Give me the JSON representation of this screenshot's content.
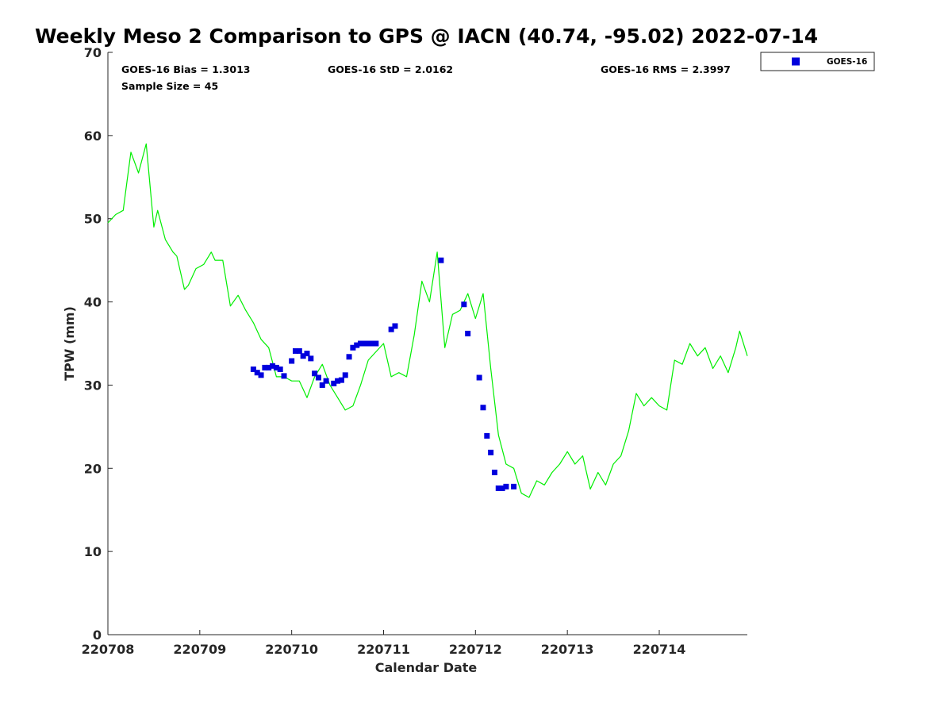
{
  "chart_data": {
    "type": "line",
    "title": "Weekly Meso 2 Comparison to GPS @ IACN (40.74, -95.02) 2022-07-14",
    "xlabel": "Calendar Date",
    "ylabel": "TPW (mm)",
    "ylim": [
      0,
      70
    ],
    "yticks": [
      "0",
      "10",
      "20",
      "30",
      "40",
      "50",
      "60",
      "70"
    ],
    "xlim": [
      "2022-07-08",
      "2022-07-14 23:00"
    ],
    "xticks": [
      "220708",
      "220709",
      "220710",
      "220711",
      "220712",
      "220713",
      "220714"
    ],
    "grid": false,
    "legend_position": "top-right",
    "stats": {
      "bias": "GOES-16 Bias = 1.3013",
      "std": "GOES-16 StD = 2.0162",
      "rms": "GOES-16 RMS = 2.3997",
      "sample": "Sample Size = 45"
    },
    "series": [
      {
        "color": "#00ee00",
        "x": [
          "2022-07-08 00:00",
          "2022-07-08 02:00",
          "2022-07-08 04:00",
          "2022-07-08 05:00",
          "2022-07-08 06:00",
          "2022-07-08 08:00",
          "2022-07-08 10:00",
          "2022-07-08 12:00",
          "2022-07-08 13:00",
          "2022-07-08 15:00",
          "2022-07-08 17:00",
          "2022-07-08 18:00",
          "2022-07-08 20:00",
          "2022-07-08 21:00",
          "2022-07-08 23:00",
          "2022-07-09 01:00",
          "2022-07-09 03:00",
          "2022-07-09 04:00",
          "2022-07-09 06:00",
          "2022-07-09 08:00",
          "2022-07-09 10:00",
          "2022-07-09 12:00",
          "2022-07-09 14:00",
          "2022-07-09 16:00",
          "2022-07-09 18:00",
          "2022-07-09 20:00",
          "2022-07-09 22:00",
          "2022-07-10 00:00",
          "2022-07-10 02:00",
          "2022-07-10 04:00",
          "2022-07-10 06:00",
          "2022-07-10 08:00",
          "2022-07-10 10:00",
          "2022-07-10 12:00",
          "2022-07-10 14:00",
          "2022-07-10 16:00",
          "2022-07-10 18:00",
          "2022-07-10 20:00",
          "2022-07-10 22:00",
          "2022-07-11 00:00",
          "2022-07-11 02:00",
          "2022-07-11 04:00",
          "2022-07-11 06:00",
          "2022-07-11 08:00",
          "2022-07-11 10:00",
          "2022-07-11 12:00",
          "2022-07-11 14:00",
          "2022-07-11 16:00",
          "2022-07-11 18:00",
          "2022-07-11 20:00",
          "2022-07-11 22:00",
          "2022-07-12 00:00",
          "2022-07-12 02:00",
          "2022-07-12 04:00",
          "2022-07-12 06:00",
          "2022-07-12 08:00",
          "2022-07-12 10:00",
          "2022-07-12 12:00",
          "2022-07-12 14:00",
          "2022-07-12 16:00",
          "2022-07-12 18:00",
          "2022-07-12 20:00",
          "2022-07-12 22:00",
          "2022-07-13 00:00",
          "2022-07-13 02:00",
          "2022-07-13 04:00",
          "2022-07-13 06:00",
          "2022-07-13 08:00",
          "2022-07-13 10:00",
          "2022-07-13 12:00",
          "2022-07-13 14:00",
          "2022-07-13 16:00",
          "2022-07-13 18:00",
          "2022-07-13 20:00",
          "2022-07-13 22:00",
          "2022-07-14 00:00",
          "2022-07-14 02:00",
          "2022-07-14 04:00",
          "2022-07-14 06:00",
          "2022-07-14 08:00",
          "2022-07-14 10:00",
          "2022-07-14 12:00",
          "2022-07-14 14:00",
          "2022-07-14 16:00",
          "2022-07-14 18:00",
          "2022-07-14 20:00",
          "2022-07-14 21:00",
          "2022-07-14 23:00"
        ],
        "values": [
          49.5,
          50.5,
          51.0,
          54.5,
          58.0,
          55.5,
          59.0,
          49.0,
          51.0,
          47.5,
          46.0,
          45.5,
          41.5,
          42.0,
          44.0,
          44.5,
          46.0,
          45.0,
          45.0,
          39.5,
          40.8,
          39.0,
          37.5,
          35.5,
          34.5,
          31.0,
          31.0,
          30.5,
          30.5,
          28.5,
          31.0,
          32.5,
          30.0,
          28.5,
          27.0,
          27.5,
          30.0,
          33.0,
          34.0,
          35.0,
          31.0,
          31.5,
          31.0,
          36.0,
          42.5,
          40.0,
          46.0,
          34.5,
          38.5,
          39.0,
          41.0,
          38.0,
          41.0,
          32.0,
          24.0,
          20.5,
          20.0,
          17.0,
          16.5,
          18.5,
          18.0,
          19.5,
          20.5,
          22.0,
          20.5,
          21.5,
          17.5,
          19.5,
          18.0,
          20.5,
          21.5,
          24.5,
          29.0,
          27.5,
          28.5,
          27.5,
          27.0,
          33.0,
          32.5,
          35.0,
          33.5,
          34.5,
          32.0,
          33.5,
          31.5,
          34.5,
          36.5,
          33.5
        ]
      },
      {
        "name": "GOES-16",
        "color": "#0000dd",
        "marker": "square",
        "x": [
          "2022-07-09 14:00",
          "2022-07-09 15:00",
          "2022-07-09 16:00",
          "2022-07-09 17:00",
          "2022-07-09 18:00",
          "2022-07-09 19:00",
          "2022-07-09 20:00",
          "2022-07-09 21:00",
          "2022-07-09 22:00",
          "2022-07-10 00:00",
          "2022-07-10 01:00",
          "2022-07-10 02:00",
          "2022-07-10 03:00",
          "2022-07-10 04:00",
          "2022-07-10 05:00",
          "2022-07-10 06:00",
          "2022-07-10 07:00",
          "2022-07-10 08:00",
          "2022-07-10 09:00",
          "2022-07-10 11:00",
          "2022-07-10 12:00",
          "2022-07-10 13:00",
          "2022-07-10 14:00",
          "2022-07-10 15:00",
          "2022-07-10 16:00",
          "2022-07-10 17:00",
          "2022-07-10 18:00",
          "2022-07-10 19:00",
          "2022-07-10 20:00",
          "2022-07-10 21:00",
          "2022-07-10 22:00",
          "2022-07-11 02:00",
          "2022-07-11 03:00",
          "2022-07-11 15:00",
          "2022-07-11 21:00",
          "2022-07-11 22:00",
          "2022-07-12 01:00",
          "2022-07-12 02:00",
          "2022-07-12 03:00",
          "2022-07-12 04:00",
          "2022-07-12 05:00",
          "2022-07-12 06:00",
          "2022-07-12 07:00",
          "2022-07-12 08:00",
          "2022-07-12 10:00"
        ],
        "values": [
          31.9,
          31.5,
          31.2,
          32.1,
          32.1,
          32.3,
          32.1,
          31.9,
          31.1,
          32.9,
          34.1,
          34.1,
          33.5,
          33.8,
          33.2,
          31.4,
          30.9,
          30.0,
          30.5,
          30.2,
          30.5,
          30.6,
          31.2,
          33.4,
          34.5,
          34.8,
          35.0,
          35.0,
          35.0,
          35.0,
          35.0,
          36.7,
          37.1,
          45.0,
          39.7,
          36.2,
          30.9,
          27.3,
          23.9,
          21.9,
          19.5,
          17.6,
          17.6,
          17.8,
          17.8
        ]
      }
    ]
  }
}
